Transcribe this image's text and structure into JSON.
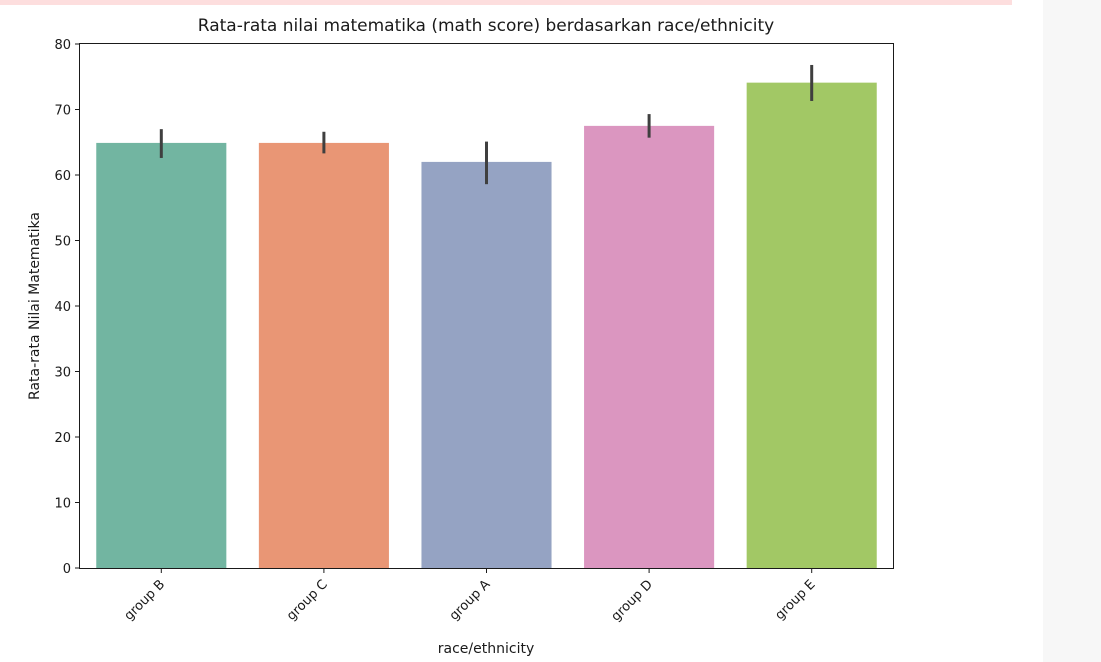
{
  "chart_data": {
    "type": "bar",
    "title": "Rata-rata nilai matematika (math score) berdasarkan race/ethnicity",
    "xlabel": "race/ethnicity",
    "ylabel": "Rata-rata Nilai Matematika",
    "categories": [
      "group B",
      "group C",
      "group A",
      "group D",
      "group E"
    ],
    "values": [
      64.9,
      64.9,
      62.0,
      67.5,
      74.1
    ],
    "error_bars": [
      {
        "low": 62.6,
        "high": 67.0
      },
      {
        "low": 63.3,
        "high": 66.6
      },
      {
        "low": 58.6,
        "high": 65.1
      },
      {
        "low": 65.7,
        "high": 69.3
      },
      {
        "low": 71.3,
        "high": 76.8
      }
    ],
    "colors": [
      "#72b5a1",
      "#e99675",
      "#95a3c3",
      "#db96c0",
      "#a2c865"
    ],
    "error_bar_color": "#3f3f3f",
    "ylim": [
      0,
      80
    ],
    "yticks": [
      0,
      10,
      20,
      30,
      40,
      50,
      60,
      70,
      80
    ],
    "grid": false,
    "legend": "none"
  }
}
